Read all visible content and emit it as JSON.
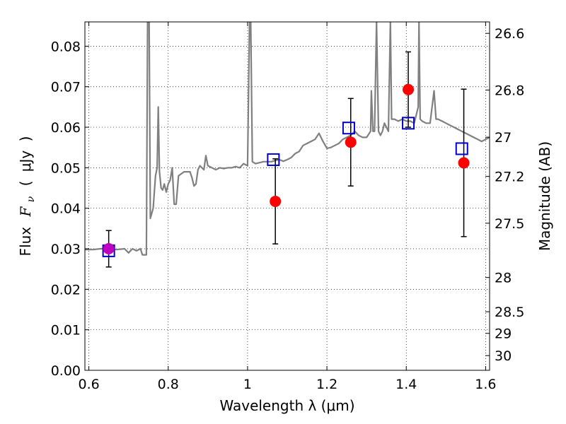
{
  "chart_data": {
    "type": "scatter",
    "title": "",
    "xlabel": "Wavelength  λ (μm)",
    "ylabel": "Flux  F_ν  ( μJy )",
    "ylabel_parts": {
      "flux": "Flux",
      "fnu": "F",
      "nu": "ν",
      "open": "(",
      "unit": "μJy",
      "close": ")"
    },
    "y2label": "Magnitude (AB)",
    "xlim": [
      0.59,
      1.61
    ],
    "ylim": [
      0.0,
      0.086
    ],
    "x_ticks": [
      0.6,
      0.8,
      1.0,
      1.2,
      1.4,
      1.6
    ],
    "x_tick_labels": [
      "0.6",
      "0.8",
      "1",
      "1.2",
      "1.4",
      "1.6"
    ],
    "y_ticks": [
      0.0,
      0.01,
      0.02,
      0.03,
      0.04,
      0.05,
      0.06,
      0.07,
      0.08
    ],
    "y_tick_labels": [
      "0.00",
      "0.01",
      "0.02",
      "0.03",
      "0.04",
      "0.05",
      "0.06",
      "0.07",
      "0.08"
    ],
    "y2_ticks": [
      26.6,
      26.8,
      27.0,
      27.2,
      27.5,
      28.0,
      28.5,
      29.0,
      30.0
    ],
    "y2_tick_labels": [
      "26.6",
      "26.8",
      "27",
      "27.2",
      "27.5",
      "28",
      "28.5",
      "29",
      "30"
    ],
    "grid": true,
    "colors": {
      "model": "#808080",
      "observed": "#ff0000",
      "observed_blue_band": "#bf00bf",
      "synthetic": "#0000cc",
      "errorbar": "#000000",
      "grid": "#000000"
    },
    "series": [
      {
        "kind": "model_spectrum",
        "points": [
          [
            0.59,
            0.0298
          ],
          [
            0.61,
            0.0298
          ],
          [
            0.63,
            0.03
          ],
          [
            0.65,
            0.03
          ],
          [
            0.67,
            0.0298
          ],
          [
            0.69,
            0.03
          ],
          [
            0.7,
            0.029
          ],
          [
            0.71,
            0.03
          ],
          [
            0.72,
            0.0295
          ],
          [
            0.73,
            0.03
          ],
          [
            0.735,
            0.0285
          ],
          [
            0.745,
            0.0285
          ],
          [
            0.748,
            0.086
          ],
          [
            0.752,
            0.086
          ],
          [
            0.755,
            0.0375
          ],
          [
            0.762,
            0.04
          ],
          [
            0.768,
            0.048
          ],
          [
            0.772,
            0.05
          ],
          [
            0.775,
            0.065
          ],
          [
            0.778,
            0.049
          ],
          [
            0.782,
            0.045
          ],
          [
            0.786,
            0.0445
          ],
          [
            0.79,
            0.046
          ],
          [
            0.795,
            0.044
          ],
          [
            0.8,
            0.046
          ],
          [
            0.805,
            0.047
          ],
          [
            0.81,
            0.05
          ],
          [
            0.815,
            0.041
          ],
          [
            0.82,
            0.041
          ],
          [
            0.826,
            0.048
          ],
          [
            0.84,
            0.049
          ],
          [
            0.855,
            0.049
          ],
          [
            0.86,
            0.0475
          ],
          [
            0.865,
            0.0455
          ],
          [
            0.87,
            0.046
          ],
          [
            0.875,
            0.0495
          ],
          [
            0.88,
            0.0505
          ],
          [
            0.885,
            0.05
          ],
          [
            0.89,
            0.0495
          ],
          [
            0.895,
            0.053
          ],
          [
            0.9,
            0.0505
          ],
          [
            0.91,
            0.05
          ],
          [
            0.92,
            0.0495
          ],
          [
            0.93,
            0.05
          ],
          [
            0.94,
            0.0498
          ],
          [
            0.95,
            0.05
          ],
          [
            0.96,
            0.05
          ],
          [
            0.97,
            0.0503
          ],
          [
            0.98,
            0.05
          ],
          [
            0.99,
            0.051
          ],
          [
            1.0,
            0.0505
          ],
          [
            1.005,
            0.086
          ],
          [
            1.008,
            0.086
          ],
          [
            1.012,
            0.0515
          ],
          [
            1.02,
            0.051
          ],
          [
            1.04,
            0.0515
          ],
          [
            1.06,
            0.0515
          ],
          [
            1.07,
            0.0518
          ],
          [
            1.08,
            0.052
          ],
          [
            1.09,
            0.0516
          ],
          [
            1.1,
            0.052
          ],
          [
            1.11,
            0.0525
          ],
          [
            1.12,
            0.0535
          ],
          [
            1.13,
            0.054
          ],
          [
            1.14,
            0.0555
          ],
          [
            1.15,
            0.056
          ],
          [
            1.16,
            0.0565
          ],
          [
            1.17,
            0.057
          ],
          [
            1.18,
            0.0585
          ],
          [
            1.19,
            0.0565
          ],
          [
            1.2,
            0.0548
          ],
          [
            1.21,
            0.055
          ],
          [
            1.22,
            0.0555
          ],
          [
            1.23,
            0.056
          ],
          [
            1.24,
            0.057
          ],
          [
            1.25,
            0.0575
          ],
          [
            1.26,
            0.058
          ],
          [
            1.27,
            0.059
          ],
          [
            1.28,
            0.058
          ],
          [
            1.29,
            0.0575
          ],
          [
            1.3,
            0.0575
          ],
          [
            1.31,
            0.059
          ],
          [
            1.312,
            0.069
          ],
          [
            1.316,
            0.059
          ],
          [
            1.32,
            0.059
          ],
          [
            1.325,
            0.086
          ],
          [
            1.33,
            0.059
          ],
          [
            1.335,
            0.058
          ],
          [
            1.34,
            0.059
          ],
          [
            1.345,
            0.061
          ],
          [
            1.35,
            0.06
          ],
          [
            1.355,
            0.059
          ],
          [
            1.36,
            0.086
          ],
          [
            1.363,
            0.062
          ],
          [
            1.37,
            0.062
          ],
          [
            1.38,
            0.0615
          ],
          [
            1.39,
            0.062
          ],
          [
            1.4,
            0.0615
          ],
          [
            1.41,
            0.0615
          ],
          [
            1.42,
            0.061
          ],
          [
            1.43,
            0.065
          ],
          [
            1.432,
            0.086
          ],
          [
            1.435,
            0.062
          ],
          [
            1.44,
            0.0615
          ],
          [
            1.45,
            0.061
          ],
          [
            1.46,
            0.061
          ],
          [
            1.47,
            0.069
          ],
          [
            1.475,
            0.062
          ],
          [
            1.48,
            0.062
          ],
          [
            1.49,
            0.0615
          ],
          [
            1.5,
            0.061
          ],
          [
            1.51,
            0.0605
          ],
          [
            1.52,
            0.06
          ],
          [
            1.53,
            0.0595
          ],
          [
            1.54,
            0.059
          ],
          [
            1.55,
            0.0585
          ],
          [
            1.56,
            0.058
          ],
          [
            1.57,
            0.0575
          ],
          [
            1.58,
            0.057
          ],
          [
            1.59,
            0.0565
          ],
          [
            1.6,
            0.057
          ],
          [
            1.61,
            0.0575
          ]
        ]
      },
      {
        "kind": "observed",
        "points": [
          {
            "x": 0.65,
            "y": 0.03,
            "err_lo": 0.0045,
            "err_hi": 0.0045,
            "color": "#bf00bf"
          },
          {
            "x": 1.07,
            "y": 0.0417,
            "err_lo": 0.0105,
            "err_hi": 0.0105,
            "color": "#ff0000"
          },
          {
            "x": 1.26,
            "y": 0.0563,
            "err_lo": 0.0108,
            "err_hi": 0.0108,
            "color": "#ff0000"
          },
          {
            "x": 1.405,
            "y": 0.0693,
            "err_lo": 0.0093,
            "err_hi": 0.0093,
            "color": "#ff0000"
          },
          {
            "x": 1.545,
            "y": 0.0512,
            "err_lo": 0.0182,
            "err_hi": 0.0182,
            "color": "#ff0000"
          }
        ]
      },
      {
        "kind": "synthetic",
        "points": [
          {
            "x": 0.65,
            "y": 0.0295
          },
          {
            "x": 1.065,
            "y": 0.052
          },
          {
            "x": 1.255,
            "y": 0.0598
          },
          {
            "x": 1.405,
            "y": 0.061
          },
          {
            "x": 1.54,
            "y": 0.0547
          }
        ]
      }
    ]
  }
}
